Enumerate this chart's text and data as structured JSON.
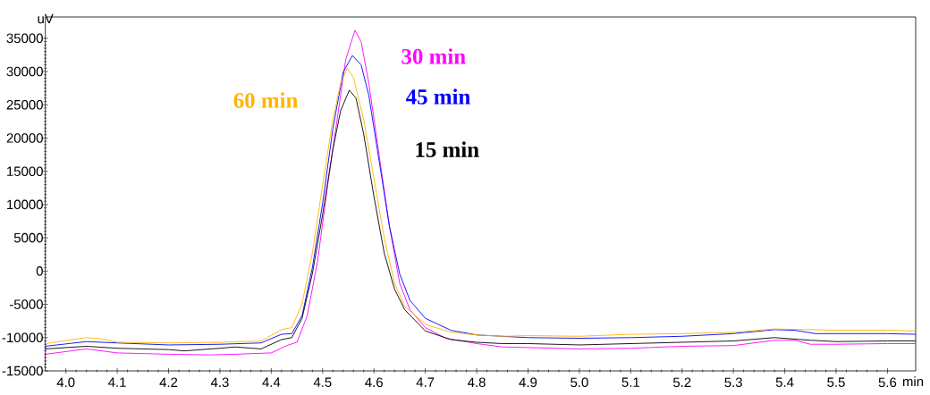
{
  "chart_data": {
    "type": "line",
    "xlabel": "min",
    "ylabel": "uV",
    "xlim": [
      3.96,
      5.655
    ],
    "ylim": [
      -15000,
      38200
    ],
    "xticks": [
      {
        "value": 4.0,
        "label": "4.0"
      },
      {
        "value": 4.1,
        "label": "4.1"
      },
      {
        "value": 4.2,
        "label": "4.2"
      },
      {
        "value": 4.3,
        "label": "4.3"
      },
      {
        "value": 4.4,
        "label": "4.4"
      },
      {
        "value": 4.5,
        "label": "4.5"
      },
      {
        "value": 4.6,
        "label": "4.6"
      },
      {
        "value": 4.7,
        "label": "4.7"
      },
      {
        "value": 4.8,
        "label": "4.8"
      },
      {
        "value": 4.9,
        "label": "4.9"
      },
      {
        "value": 5.0,
        "label": "5.0"
      },
      {
        "value": 5.1,
        "label": "5.1"
      },
      {
        "value": 5.2,
        "label": "5.2"
      },
      {
        "value": 5.3,
        "label": "5.3"
      },
      {
        "value": 5.4,
        "label": "5.4"
      },
      {
        "value": 5.5,
        "label": "5.5"
      },
      {
        "value": 5.6,
        "label": "5.6"
      }
    ],
    "yticks": [
      -15000,
      -10000,
      -5000,
      0,
      5000,
      10000,
      15000,
      20000,
      25000,
      30000,
      35000
    ],
    "grid": false,
    "series": [
      {
        "name": "30 min",
        "color": "#ff00ff",
        "x": [
          3.96,
          4.04,
          4.1,
          4.2,
          4.28,
          4.33,
          4.4,
          4.43,
          4.45,
          4.47,
          4.49,
          4.51,
          4.53,
          4.545,
          4.563,
          4.575,
          4.59,
          4.61,
          4.63,
          4.65,
          4.67,
          4.7,
          4.74,
          4.8,
          4.85,
          4.9,
          5.0,
          5.1,
          5.2,
          5.3,
          5.35,
          5.38,
          5.42,
          5.45,
          5.5,
          5.6,
          5.655
        ],
        "values": [
          -12500,
          -11700,
          -12300,
          -12500,
          -12600,
          -12500,
          -12300,
          -11200,
          -10700,
          -6700,
          1400,
          13000,
          23700,
          31800,
          36200,
          34500,
          28200,
          17500,
          6800,
          -1800,
          -5800,
          -8500,
          -10100,
          -10900,
          -11400,
          -11500,
          -11700,
          -11600,
          -11300,
          -11200,
          -10700,
          -10400,
          -10400,
          -11000,
          -11000,
          -10900,
          -10900
        ]
      },
      {
        "name": "45 min",
        "color": "#0000ff",
        "x": [
          3.96,
          4.04,
          4.1,
          4.2,
          4.3,
          4.38,
          4.42,
          4.44,
          4.46,
          4.48,
          4.5,
          4.52,
          4.54,
          4.558,
          4.575,
          4.59,
          4.61,
          4.63,
          4.65,
          4.67,
          4.7,
          4.75,
          4.8,
          4.85,
          4.9,
          5.0,
          5.1,
          5.2,
          5.3,
          5.38,
          5.42,
          5.46,
          5.5,
          5.6,
          5.655
        ],
        "values": [
          -11300,
          -10600,
          -10800,
          -11100,
          -11000,
          -10800,
          -9500,
          -9400,
          -6700,
          500,
          10200,
          21400,
          29900,
          32400,
          31000,
          26400,
          16600,
          6800,
          -400,
          -4400,
          -7100,
          -8900,
          -9600,
          -9800,
          -10000,
          -10100,
          -10000,
          -9800,
          -9400,
          -8800,
          -8900,
          -9400,
          -9400,
          -9400,
          -9500
        ]
      },
      {
        "name": "60 min",
        "color": "#ffb400",
        "x": [
          3.96,
          4.04,
          4.07,
          4.1,
          4.2,
          4.3,
          4.38,
          4.42,
          4.44,
          4.46,
          4.48,
          4.5,
          4.52,
          4.535,
          4.548,
          4.56,
          4.58,
          4.6,
          4.62,
          4.64,
          4.66,
          4.7,
          4.75,
          4.8,
          4.85,
          4.9,
          5.0,
          5.1,
          5.2,
          5.3,
          5.38,
          5.45,
          5.5,
          5.6,
          5.655
        ],
        "values": [
          -10900,
          -10000,
          -10200,
          -10700,
          -10800,
          -10700,
          -10500,
          -8800,
          -8500,
          -4900,
          2700,
          13000,
          22800,
          28200,
          30500,
          29100,
          22800,
          13900,
          5000,
          -1800,
          -5300,
          -8000,
          -9200,
          -9600,
          -9800,
          -9700,
          -9800,
          -9500,
          -9400,
          -9200,
          -8700,
          -8800,
          -8900,
          -8900,
          -9000
        ]
      },
      {
        "name": "15 min",
        "color": "#000000",
        "x": [
          3.96,
          4.04,
          4.1,
          4.2,
          4.23,
          4.3,
          4.33,
          4.38,
          4.42,
          4.44,
          4.46,
          4.48,
          4.5,
          4.52,
          4.535,
          4.552,
          4.565,
          4.58,
          4.6,
          4.62,
          4.64,
          4.66,
          4.7,
          4.75,
          4.8,
          4.85,
          4.9,
          5.0,
          5.1,
          5.2,
          5.3,
          5.38,
          5.45,
          5.5,
          5.6,
          5.655
        ],
        "values": [
          -11700,
          -11300,
          -11600,
          -11800,
          -12000,
          -11600,
          -11400,
          -11700,
          -10300,
          -10000,
          -7100,
          -400,
          8500,
          18300,
          24100,
          27200,
          26000,
          20600,
          11200,
          2700,
          -2700,
          -5800,
          -9000,
          -10300,
          -10700,
          -10900,
          -10900,
          -11100,
          -10900,
          -10700,
          -10500,
          -10000,
          -10400,
          -10600,
          -10500,
          -10500
        ]
      }
    ]
  }
}
